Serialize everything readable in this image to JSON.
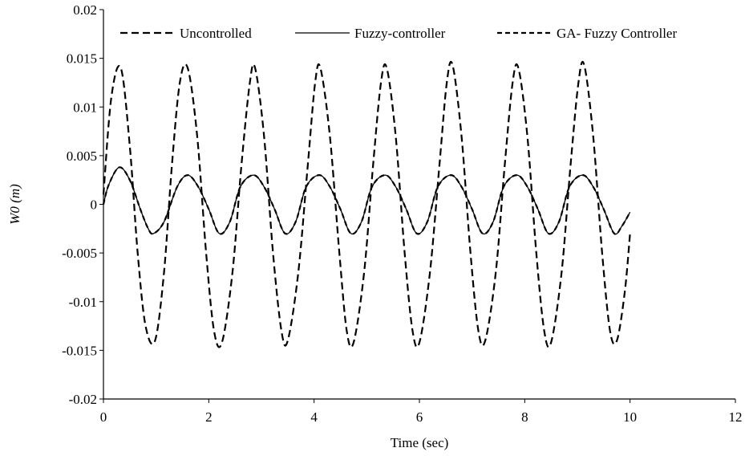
{
  "chart_data": {
    "type": "line",
    "title": "",
    "xlabel": "Time (sec)",
    "ylabel": "W0 (m)",
    "xlim": [
      0,
      12
    ],
    "ylim": [
      -0.02,
      0.02
    ],
    "x_ticks": [
      0,
      2,
      4,
      6,
      8,
      10,
      12
    ],
    "x_tick_labels": [
      "0",
      "2",
      "4",
      "6",
      "8",
      "10",
      "12"
    ],
    "y_ticks": [
      -0.02,
      -0.015,
      -0.01,
      -0.005,
      0,
      0.005,
      0.01,
      0.015,
      0.02
    ],
    "y_tick_labels": [
      "-0.02",
      "-0.015",
      "-0.01",
      "-0.005",
      "0",
      "0.005",
      "0.01",
      "0.015",
      "0.02"
    ],
    "grid": false,
    "legend_position": "top",
    "series": [
      {
        "name": "Uncontrolled",
        "style": "dashed",
        "color": "#000000",
        "x": [
          0,
          0.15,
          0.33,
          0.5,
          0.65,
          0.8,
          0.98,
          1.15,
          1.3,
          1.45,
          1.6,
          1.78,
          1.95,
          2.1,
          2.25,
          2.45,
          2.62,
          2.78,
          2.88,
          3.05,
          3.22,
          3.38,
          3.5,
          3.7,
          3.88,
          4.02,
          4.12,
          4.3,
          4.48,
          4.62,
          4.75,
          4.95,
          5.12,
          5.27,
          5.38,
          5.55,
          5.72,
          5.87,
          6.0,
          6.2,
          6.38,
          6.52,
          6.63,
          6.8,
          6.97,
          7.12,
          7.25,
          7.45,
          7.62,
          7.77,
          7.88,
          8.05,
          8.22,
          8.37,
          8.5,
          8.7,
          8.87,
          9.02,
          9.13,
          9.3,
          9.47,
          9.62,
          9.75,
          9.9,
          10.0
        ],
        "y": [
          0.001,
          0.011,
          0.014,
          0.006,
          -0.005,
          -0.0125,
          -0.014,
          -0.007,
          0.004,
          0.0125,
          0.014,
          0.007,
          -0.005,
          -0.013,
          -0.0142,
          -0.007,
          0.004,
          0.0125,
          0.014,
          0.007,
          -0.005,
          -0.013,
          -0.014,
          -0.007,
          0.004,
          0.0125,
          0.014,
          0.007,
          -0.005,
          -0.013,
          -0.0142,
          -0.007,
          0.004,
          0.0125,
          0.014,
          0.007,
          -0.005,
          -0.013,
          -0.0142,
          -0.007,
          0.004,
          0.0125,
          0.0143,
          0.007,
          -0.005,
          -0.013,
          -0.014,
          -0.007,
          0.004,
          0.0125,
          0.014,
          0.007,
          -0.005,
          -0.013,
          -0.0142,
          -0.007,
          0.004,
          0.0125,
          0.0143,
          0.007,
          -0.005,
          -0.013,
          -0.014,
          -0.009,
          -0.003
        ]
      },
      {
        "name": "Fuzzy-controller",
        "style": "solid",
        "color": "#000000",
        "x": [
          0,
          0.1,
          0.3,
          0.5,
          0.7,
          0.85,
          0.95,
          1.15,
          1.4,
          1.6,
          1.8,
          2.0,
          2.2,
          2.4,
          2.6,
          2.85,
          3.05,
          3.25,
          3.45,
          3.65,
          3.85,
          4.1,
          4.3,
          4.5,
          4.7,
          4.9,
          5.1,
          5.35,
          5.55,
          5.75,
          5.95,
          6.15,
          6.35,
          6.6,
          6.8,
          7.0,
          7.2,
          7.4,
          7.6,
          7.85,
          8.05,
          8.25,
          8.45,
          8.65,
          8.85,
          9.1,
          9.3,
          9.5,
          9.7,
          9.85,
          10.0
        ],
        "y": [
          0.0,
          0.002,
          0.0038,
          0.0025,
          -0.0005,
          -0.0025,
          -0.003,
          -0.0018,
          0.0018,
          0.003,
          0.0018,
          -0.0005,
          -0.003,
          -0.0018,
          0.0018,
          0.003,
          0.0018,
          -0.0005,
          -0.003,
          -0.0018,
          0.0018,
          0.003,
          0.0018,
          -0.0005,
          -0.003,
          -0.0018,
          0.0018,
          0.003,
          0.0018,
          -0.0005,
          -0.003,
          -0.0018,
          0.0018,
          0.003,
          0.0018,
          -0.0005,
          -0.003,
          -0.0018,
          0.0018,
          0.003,
          0.0018,
          -0.0005,
          -0.003,
          -0.0018,
          0.0018,
          0.003,
          0.0018,
          -0.0005,
          -0.003,
          -0.0022,
          -0.0008
        ]
      },
      {
        "name": "GA- Fuzzy Controller",
        "style": "dashed",
        "color": "#000000",
        "x": [
          0,
          0.1,
          0.3,
          0.5,
          0.7,
          0.85,
          0.95,
          1.15,
          1.4,
          1.6,
          1.8,
          2.0,
          2.2,
          2.4,
          2.6,
          2.85,
          3.05,
          3.25,
          3.45,
          3.65,
          3.85,
          4.1,
          4.3,
          4.5,
          4.7,
          4.9,
          5.1,
          5.35,
          5.55,
          5.75,
          5.95,
          6.15,
          6.35,
          6.6,
          6.8,
          7.0,
          7.2,
          7.4,
          7.6,
          7.85,
          8.05,
          8.25,
          8.45,
          8.65,
          8.85,
          9.1,
          9.3,
          9.5,
          9.7,
          9.85,
          10.0
        ],
        "y": [
          0.0,
          0.002,
          0.0038,
          0.0025,
          -0.0005,
          -0.0025,
          -0.003,
          -0.0018,
          0.0018,
          0.003,
          0.0018,
          -0.0005,
          -0.003,
          -0.0018,
          0.0018,
          0.003,
          0.0018,
          -0.0005,
          -0.003,
          -0.0018,
          0.0018,
          0.003,
          0.0018,
          -0.0005,
          -0.003,
          -0.0018,
          0.0018,
          0.003,
          0.0018,
          -0.0005,
          -0.003,
          -0.0018,
          0.0018,
          0.003,
          0.0018,
          -0.0005,
          -0.003,
          -0.0018,
          0.0018,
          0.003,
          0.0018,
          -0.0005,
          -0.003,
          -0.0018,
          0.0018,
          0.003,
          0.0018,
          -0.0005,
          -0.003,
          -0.0022,
          -0.0008
        ]
      }
    ]
  }
}
